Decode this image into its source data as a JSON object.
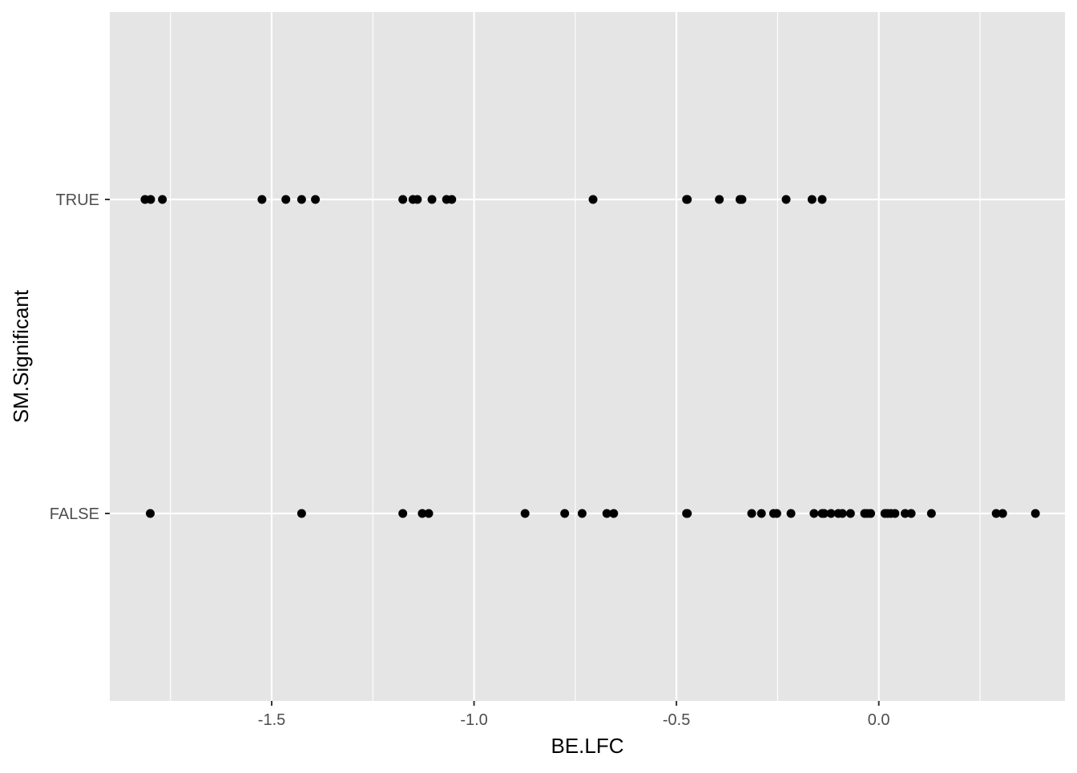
{
  "chart_data": {
    "type": "scatter",
    "title": "",
    "xlabel": "BE.LFC",
    "ylabel": "SM.Significant",
    "xlim": [
      -1.9,
      0.46
    ],
    "x_ticks": [
      -1.5,
      -1.0,
      -0.5,
      0.0
    ],
    "x_tick_labels": [
      "-1.5",
      "-1.0",
      "-0.5",
      "0.0"
    ],
    "x_minor_ticks": [
      -1.75,
      -1.25,
      -0.75,
      -0.25,
      0.25
    ],
    "categories": [
      "TRUE",
      "FALSE"
    ],
    "grid": true,
    "legend": "none",
    "point_color": "#000000",
    "panel_background": "#e5e5e5",
    "grid_color": "#ffffff",
    "series": [
      {
        "category": "TRUE",
        "x": [
          -1.813,
          -1.799,
          -1.77,
          -1.524,
          -1.465,
          -1.426,
          -1.392,
          -1.176,
          -1.151,
          -1.14,
          -1.104,
          -1.068,
          -1.055,
          -0.706,
          -0.475,
          -0.473,
          -0.394,
          -0.343,
          -0.338,
          -0.229,
          -0.165,
          -0.14
        ]
      },
      {
        "category": "FALSE",
        "x": [
          -1.8,
          -1.426,
          -1.176,
          -1.128,
          -1.112,
          -0.874,
          -0.776,
          -0.733,
          -0.672,
          -0.655,
          -0.475,
          -0.473,
          -0.314,
          -0.29,
          -0.26,
          -0.252,
          -0.217,
          -0.16,
          -0.14,
          -0.135,
          -0.118,
          -0.1,
          -0.09,
          -0.07,
          -0.035,
          -0.028,
          -0.02,
          0.015,
          0.022,
          0.03,
          0.04,
          0.065,
          0.08,
          0.13,
          0.29,
          0.306,
          0.387
        ]
      }
    ]
  }
}
